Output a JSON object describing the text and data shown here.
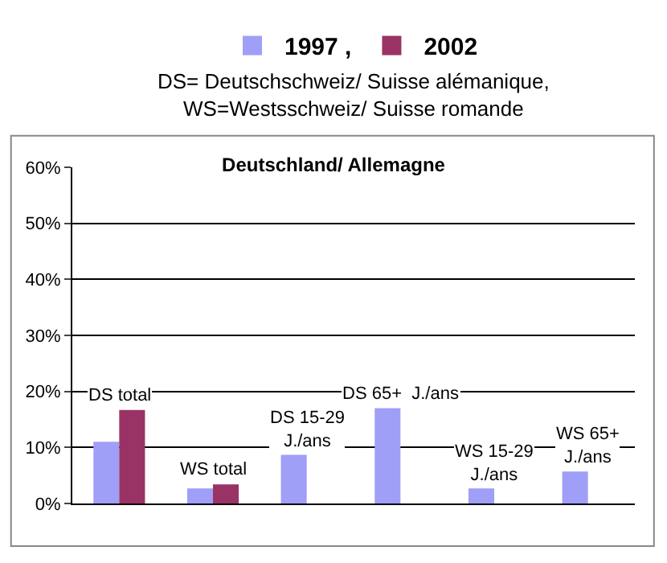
{
  "chart_data": {
    "type": "bar",
    "title": "Deutschland/ Allemagne",
    "subtitle": "DS= Deutschschweiz/ Suisse alémanique,\nWS=Westsschweiz/ Suisse romande",
    "categories": [
      "DS total",
      "WS total",
      "DS 15-29\nJ./ans",
      "DS 65+  J./ans",
      "WS 15-29\nJ./ans",
      "WS 65+\nJ./ans"
    ],
    "series": [
      {
        "name": "1997 ,",
        "color": "#9f9ff8",
        "values": [
          11,
          2.7,
          8.7,
          17,
          2.7,
          5.7
        ]
      },
      {
        "name": "2002",
        "color": "#993366",
        "values": [
          16.7,
          3.4,
          null,
          null,
          null,
          null
        ]
      }
    ],
    "ylim": [
      0,
      60
    ],
    "yticks": [
      {
        "value": 0,
        "label": "0%"
      },
      {
        "value": 10,
        "label": "10%"
      },
      {
        "value": 20,
        "label": "20%"
      },
      {
        "value": 30,
        "label": "30%"
      },
      {
        "value": 40,
        "label": "40%"
      },
      {
        "value": 50,
        "label": "50%"
      },
      {
        "value": 60,
        "label": "60%"
      }
    ],
    "grid": "y",
    "legend": "top"
  }
}
